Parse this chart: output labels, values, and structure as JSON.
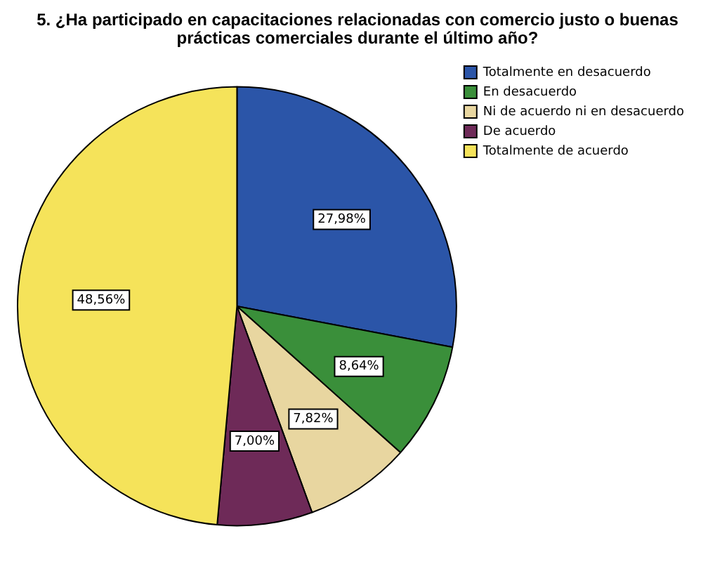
{
  "chart_data": {
    "type": "pie",
    "title": "5. ¿Ha participado en capacitaciones relacionadas con comercio justo o buenas prácticas comerciales durante el último año?",
    "categories": [
      "Totalmente en desacuerdo",
      "En desacuerdo",
      "Ni de acuerdo ni en desacuerdo",
      "De acuerdo",
      "Totalmente de acuerdo"
    ],
    "values": [
      27.98,
      8.64,
      7.82,
      7.0,
      48.56
    ],
    "value_labels": [
      "27,98%",
      "8,64%",
      "7,82%",
      "7,00%",
      "48,56%"
    ],
    "colors": [
      "#2b55a8",
      "#3a8f3a",
      "#e8d6a0",
      "#6e2a58",
      "#f5e35a"
    ],
    "legend": "top right"
  }
}
